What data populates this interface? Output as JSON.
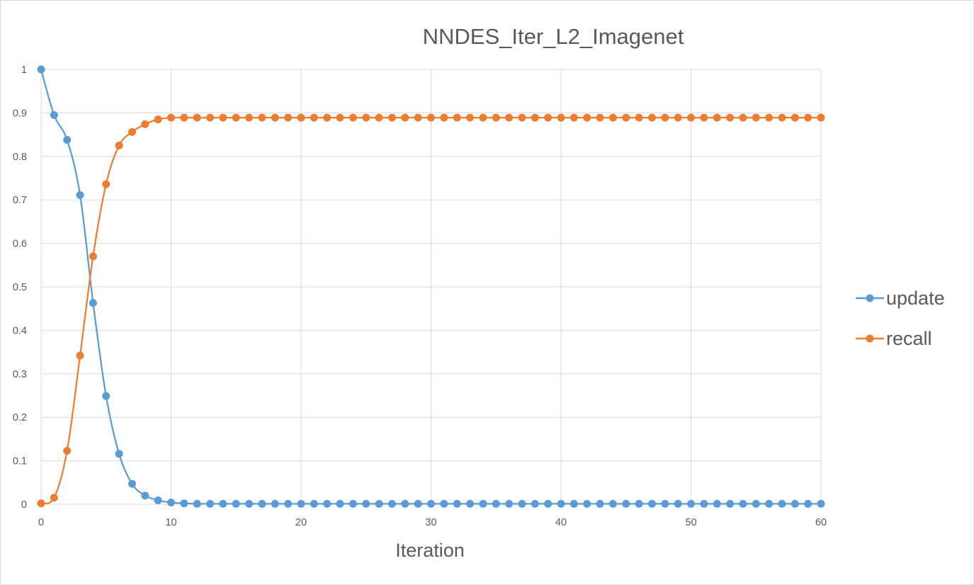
{
  "chart_data": {
    "type": "line",
    "title": "NNDES_Iter_L2_Imagenet",
    "xlabel": "Iteration",
    "ylabel": "",
    "xlim": [
      0,
      60
    ],
    "ylim": [
      0,
      1
    ],
    "x_ticks": [
      "0",
      "10",
      "20",
      "30",
      "40",
      "50",
      "60"
    ],
    "y_ticks": [
      "0",
      "0.1",
      "0.2",
      "0.3",
      "0.4",
      "0.5",
      "0.6",
      "0.7",
      "0.8",
      "0.9",
      "1"
    ],
    "grid": true,
    "legend_position": "right",
    "x": [
      0,
      1,
      2,
      3,
      4,
      5,
      6,
      7,
      8,
      9,
      10,
      11,
      12,
      13,
      14,
      15,
      16,
      17,
      18,
      19,
      20,
      21,
      22,
      23,
      24,
      25,
      26,
      27,
      28,
      29,
      30,
      31,
      32,
      33,
      34,
      35,
      36,
      37,
      38,
      39,
      40,
      41,
      42,
      43,
      44,
      45,
      46,
      47,
      48,
      49,
      50,
      51,
      52,
      53,
      54,
      55,
      56,
      57,
      58,
      59,
      60
    ],
    "series": [
      {
        "name": "update",
        "color": "#5b9bd5",
        "values": [
          1.0,
          0.895,
          0.838,
          0.711,
          0.463,
          0.249,
          0.116,
          0.047,
          0.02,
          0.009,
          0.004,
          0.002,
          0.001,
          0.001,
          0.001,
          0.001,
          0.001,
          0.001,
          0.001,
          0.001,
          0.001,
          0.001,
          0.001,
          0.001,
          0.001,
          0.001,
          0.001,
          0.001,
          0.001,
          0.001,
          0.001,
          0.001,
          0.001,
          0.001,
          0.001,
          0.001,
          0.001,
          0.001,
          0.001,
          0.001,
          0.001,
          0.001,
          0.001,
          0.001,
          0.001,
          0.001,
          0.001,
          0.001,
          0.001,
          0.001,
          0.001,
          0.001,
          0.001,
          0.001,
          0.001,
          0.001,
          0.001,
          0.001,
          0.001,
          0.001,
          0.001
        ]
      },
      {
        "name": "recall",
        "color": "#ed7d31",
        "values": [
          0.002,
          0.015,
          0.123,
          0.342,
          0.57,
          0.736,
          0.825,
          0.856,
          0.874,
          0.885,
          0.889,
          0.889,
          0.889,
          0.889,
          0.889,
          0.889,
          0.889,
          0.889,
          0.889,
          0.889,
          0.889,
          0.889,
          0.889,
          0.889,
          0.889,
          0.889,
          0.889,
          0.889,
          0.889,
          0.889,
          0.889,
          0.889,
          0.889,
          0.889,
          0.889,
          0.889,
          0.889,
          0.889,
          0.889,
          0.889,
          0.889,
          0.889,
          0.889,
          0.889,
          0.889,
          0.889,
          0.889,
          0.889,
          0.889,
          0.889,
          0.889,
          0.889,
          0.889,
          0.889,
          0.889,
          0.889,
          0.889,
          0.889,
          0.889,
          0.889,
          0.889
        ]
      }
    ]
  }
}
